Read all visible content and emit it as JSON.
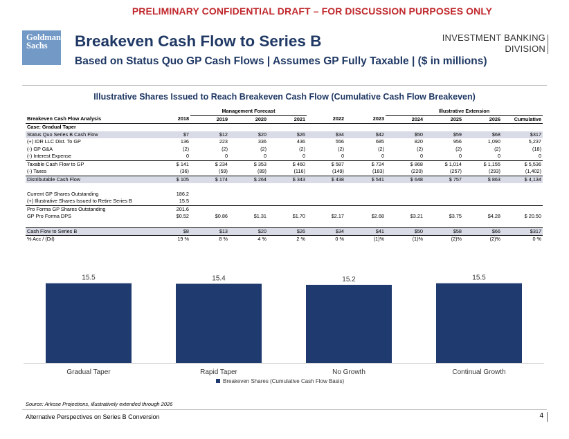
{
  "header": {
    "draft_banner": "PRELIMINARY CONFIDENTIAL DRAFT – FOR DISCUSSION PURPOSES ONLY",
    "logo_line1": "Goldman",
    "logo_line2": "Sachs",
    "title": "Breakeven Cash Flow to Series B",
    "subtitle": "Based on Status Quo GP Cash Flows | Assumes GP Fully Taxable | ($ in millions)",
    "division_line1": "INVESTMENT BANKING",
    "division_line2": "DIVISION"
  },
  "section_title": "Illustrative Shares Issued to Reach Breakeven Cash Flow (Cumulative Cash Flow Breakeven)",
  "table": {
    "group_management": "Management Forecast",
    "group_extension": "Illustrative Extension",
    "label_header": "Breakeven Cash Flow Analysis",
    "years": [
      "2018",
      "2019",
      "2020",
      "2021",
      "2022",
      "2023",
      "2024",
      "2025",
      "2026",
      "Cumulative"
    ],
    "case_label": "Case: Gradual Taper",
    "rows": [
      {
        "label": "Status Quo Series B Cash Flow",
        "values": [
          "$7",
          "$12",
          "$20",
          "$26",
          "$34",
          "$42",
          "$50",
          "$59",
          "$68",
          "$317"
        ]
      },
      {
        "label": "(+) IDR LLC Dist. To GP",
        "values": [
          "136",
          "223",
          "336",
          "436",
          "556",
          "685",
          "820",
          "956",
          "1,090",
          "5,237"
        ]
      },
      {
        "label": "(-) GP G&A",
        "values": [
          "(2)",
          "(2)",
          "(2)",
          "(2)",
          "(2)",
          "(2)",
          "(2)",
          "(2)",
          "(2)",
          "(18)"
        ]
      },
      {
        "label": "(-) Interest Expense",
        "values": [
          "0",
          "0",
          "0",
          "0",
          "0",
          "0",
          "0",
          "0",
          "0",
          "0"
        ]
      },
      {
        "label": "Taxable Cash Flow to GP",
        "values": [
          "$ 141",
          "$ 234",
          "$ 353",
          "$ 460",
          "$ 587",
          "$ 724",
          "$ 868",
          "$ 1,014",
          "$ 1,155",
          "$ 5,536"
        ]
      },
      {
        "label": "(-) Taxes",
        "values": [
          "(36)",
          "(59)",
          "(89)",
          "(116)",
          "(149)",
          "(183)",
          "(220)",
          "(257)",
          "(293)",
          "(1,402)"
        ]
      },
      {
        "label": "Distributable Cash Flow",
        "values": [
          "$ 105",
          "$ 174",
          "$ 264",
          "$ 343",
          "$ 438",
          "$ 541",
          "$ 648",
          "$ 757",
          "$ 863",
          "$ 4,134"
        ]
      }
    ],
    "shares": [
      {
        "label": "Current GP Shares Outstanding",
        "value": "186.2"
      },
      {
        "label": "(+) Illustrative Shares Issued to Retire Series B",
        "value": "15.5"
      },
      {
        "label": "Pro Forma GP Shares Outstanding",
        "value": "201.6"
      }
    ],
    "dps": {
      "label": "GP Pro Forma DPS",
      "values": [
        "$0.52",
        "$0.86",
        "$1.31",
        "$1.70",
        "$2.17",
        "$2.68",
        "$3.21",
        "$3.75",
        "$4.28",
        "$ 20.50"
      ]
    },
    "cf_series_b": {
      "label": "Cash Flow to Series B",
      "values": [
        "$8",
        "$13",
        "$20",
        "$26",
        "$34",
        "$41",
        "$50",
        "$58",
        "$66",
        "$317"
      ]
    },
    "acc_dil": {
      "label": "% Acc / (Dil)",
      "values": [
        "19 %",
        "8 %",
        "4 %",
        "2 %",
        "0 %",
        "(1)%",
        "(1)%",
        "(2)%",
        "(2)%",
        "0 %"
      ]
    }
  },
  "chart_data": {
    "type": "bar",
    "categories": [
      "Gradual Taper",
      "Rapid Taper",
      "No Growth",
      "Continual Growth"
    ],
    "series": [
      {
        "name": "Breakeven Shares (Cumulative Cash Flow Basis)",
        "values": [
          15.5,
          15.4,
          15.2,
          15.5
        ],
        "labels": [
          "15.5",
          "15.4",
          "15.2",
          "15.5"
        ]
      }
    ],
    "ylim": [
      0,
      16
    ],
    "legend": "bottom",
    "bar_color": "#1f3a6e"
  },
  "source": "Source: Arkose Projections, illustratively extended through 2026",
  "footer": {
    "text": "Alternative Perspectives on Series B Conversion",
    "page": "4"
  }
}
